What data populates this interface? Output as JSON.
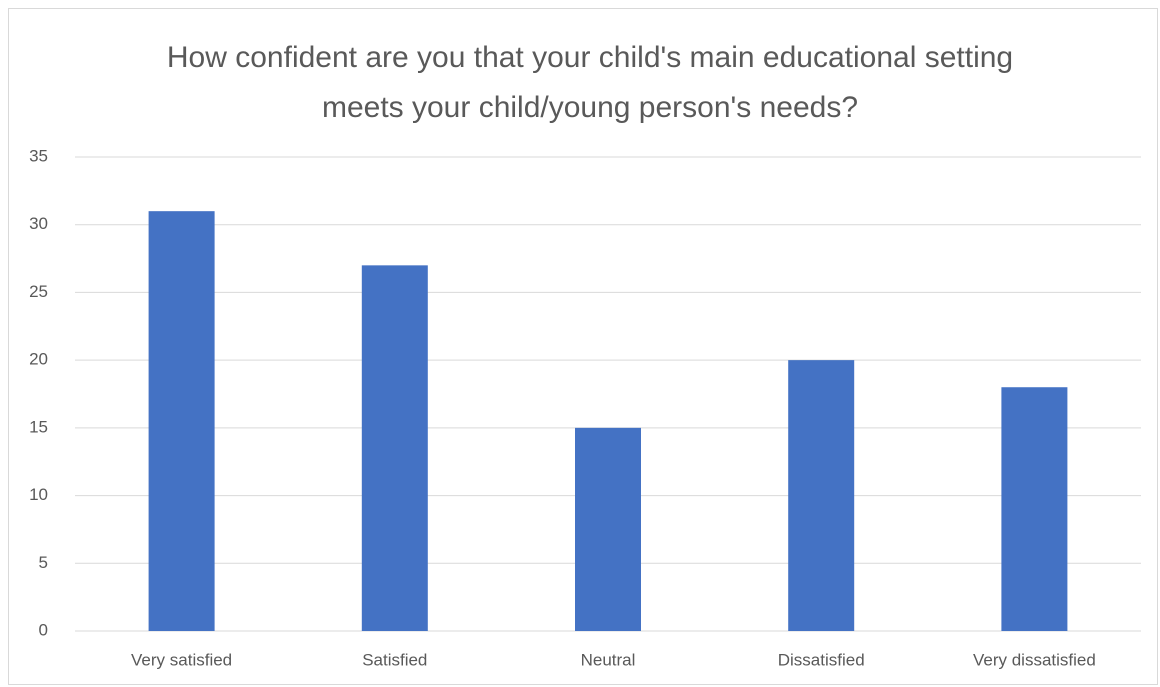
{
  "chart_data": {
    "type": "bar",
    "title": "How confident are you that your child's main educational setting meets your child/young person's needs?",
    "categories": [
      "Very satisfied",
      "Satisfied",
      "Neutral",
      "Dissatisfied",
      "Very dissatisfied"
    ],
    "values": [
      31,
      27,
      15,
      20,
      18
    ],
    "color": "#4472c4",
    "ylim": [
      0,
      35
    ],
    "yticks": [
      0,
      5,
      10,
      15,
      20,
      25,
      30,
      35
    ],
    "grid": true
  }
}
